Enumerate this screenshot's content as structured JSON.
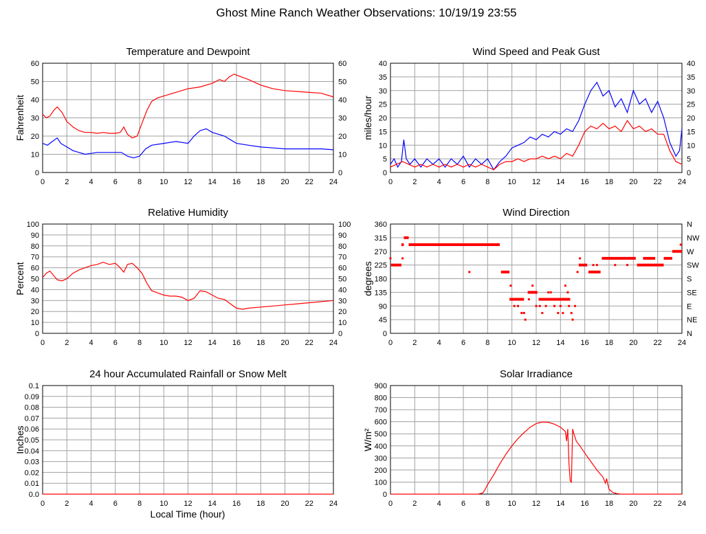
{
  "title": "Ghost Mine Ranch Weather Observations: 10/19/19 23:55",
  "colors": {
    "red": "#ff0000",
    "blue": "#0000ff",
    "grid": "#a0a0a0"
  },
  "x_axis_label": "Local Time (hour)",
  "chart_data": [
    {
      "id": "temp",
      "type": "line",
      "title": "Temperature and Dewpoint",
      "ylabel": "Fahrenheit",
      "xlim": [
        0,
        24
      ],
      "ylim": [
        0,
        60
      ],
      "xticks": [
        0,
        2,
        4,
        6,
        8,
        10,
        12,
        14,
        16,
        18,
        20,
        22,
        24
      ],
      "yticks": [
        0,
        10,
        20,
        30,
        40,
        50,
        60
      ],
      "right_ticks": [
        "0",
        "10",
        "20",
        "30",
        "40",
        "50",
        "60"
      ],
      "grid": true,
      "series": [
        {
          "color": "#ff0000",
          "x": [
            0,
            0.3,
            0.6,
            0.9,
            1.2,
            1.6,
            2,
            2.5,
            3,
            3.5,
            4,
            4.5,
            5,
            5.5,
            6,
            6.4,
            6.7,
            7,
            7.4,
            7.8,
            8.2,
            8.6,
            9,
            9.5,
            10,
            11,
            12,
            13,
            14,
            14.6,
            15,
            15.4,
            15.8,
            16.2,
            17,
            18,
            19,
            20,
            21,
            22,
            23,
            24
          ],
          "y": [
            32,
            30,
            31,
            34,
            36,
            33,
            28,
            25,
            23,
            22,
            22,
            21.5,
            22,
            21.5,
            21.5,
            22,
            25,
            21,
            19,
            20,
            27,
            34,
            39,
            41,
            42,
            44,
            46,
            47,
            49,
            51,
            50,
            52.5,
            54,
            53,
            51,
            48,
            46,
            45,
            44.5,
            44,
            43.5,
            41.5
          ]
        },
        {
          "color": "#0000ff",
          "x": [
            0,
            0.4,
            0.8,
            1.2,
            1.5,
            2,
            2.5,
            3,
            3.5,
            4,
            4.5,
            5,
            5.5,
            6,
            6.5,
            7,
            7.5,
            8,
            8.5,
            9,
            10,
            11,
            12,
            12.5,
            13,
            13.5,
            14,
            14.5,
            15,
            15.5,
            16,
            17,
            18,
            19,
            20,
            21,
            22,
            23,
            24
          ],
          "y": [
            16,
            15,
            17,
            19,
            16,
            14,
            12,
            11,
            10,
            10.5,
            11,
            11,
            11,
            11,
            11,
            9,
            8,
            9,
            13,
            15,
            16,
            17,
            16,
            20,
            23,
            24,
            22,
            21,
            20,
            18,
            16,
            15,
            14,
            13.5,
            13,
            13,
            13,
            13,
            12.5
          ]
        }
      ]
    },
    {
      "id": "wind",
      "type": "line",
      "title": "Wind Speed and Peak Gust",
      "ylabel": "miles/hour",
      "xlim": [
        0,
        24
      ],
      "ylim": [
        0,
        40
      ],
      "xticks": [
        0,
        2,
        4,
        6,
        8,
        10,
        12,
        14,
        16,
        18,
        20,
        22,
        24
      ],
      "yticks": [
        0,
        5,
        10,
        15,
        20,
        25,
        30,
        35,
        40
      ],
      "right_ticks": [
        "0",
        "5",
        "10",
        "15",
        "20",
        "25",
        "30",
        "35",
        "40"
      ],
      "grid": true,
      "series": [
        {
          "color": "#0000ff",
          "x": [
            0,
            0.3,
            0.6,
            0.9,
            1.1,
            1.3,
            1.6,
            2,
            2.5,
            3,
            3.5,
            4,
            4.5,
            5,
            5.5,
            6,
            6.5,
            7,
            7.5,
            8,
            8.5,
            9,
            9.5,
            10,
            10.5,
            11,
            11.5,
            12,
            12.5,
            13,
            13.5,
            14,
            14.5,
            15,
            15.5,
            16,
            16.5,
            17,
            17.5,
            18,
            18.5,
            19,
            19.5,
            20,
            20.5,
            21,
            21.5,
            22,
            22.5,
            23,
            23.5,
            23.8,
            24
          ],
          "y": [
            3,
            5,
            2,
            4,
            12,
            5,
            3,
            5,
            2,
            5,
            3,
            5,
            2,
            5,
            3,
            6,
            2,
            5,
            3,
            5,
            1,
            4,
            6,
            9,
            10,
            11,
            13,
            12,
            14,
            13,
            15,
            14,
            16,
            15,
            19,
            25,
            30,
            33,
            28,
            30,
            24,
            27,
            22,
            30,
            25,
            27,
            22,
            26,
            20,
            11,
            6,
            8,
            16
          ]
        },
        {
          "color": "#ff0000",
          "x": [
            0,
            0.5,
            1,
            1.5,
            2,
            2.5,
            3,
            3.5,
            4,
            4.5,
            5,
            5.5,
            6,
            6.5,
            7,
            7.5,
            8,
            8.5,
            9,
            9.5,
            10,
            10.5,
            11,
            11.5,
            12,
            12.5,
            13,
            13.5,
            14,
            14.5,
            15,
            15.5,
            16,
            16.5,
            17,
            17.5,
            18,
            18.5,
            19,
            19.5,
            20,
            20.5,
            21,
            21.5,
            22,
            22.5,
            23,
            23.5,
            24
          ],
          "y": [
            2,
            3,
            4,
            3,
            2,
            3,
            2,
            3,
            2,
            3,
            2,
            3,
            2,
            3,
            2,
            3,
            2,
            1,
            3,
            4,
            4,
            5,
            4,
            5,
            5,
            6,
            5,
            6,
            5,
            7,
            6,
            10,
            15,
            17,
            16,
            18,
            16,
            17,
            15,
            19,
            16,
            17,
            15,
            16,
            14,
            14,
            8,
            4,
            3
          ]
        }
      ]
    },
    {
      "id": "rh",
      "type": "line",
      "title": "Relative Humidity",
      "ylabel": "Percent",
      "xlim": [
        0,
        24
      ],
      "ylim": [
        0,
        100
      ],
      "xticks": [
        0,
        2,
        4,
        6,
        8,
        10,
        12,
        14,
        16,
        18,
        20,
        22,
        24
      ],
      "yticks": [
        0,
        10,
        20,
        30,
        40,
        50,
        60,
        70,
        80,
        90,
        100
      ],
      "right_ticks": [
        "0",
        "10",
        "20",
        "30",
        "40",
        "50",
        "60",
        "70",
        "80",
        "90",
        "100"
      ],
      "grid": true,
      "series": [
        {
          "color": "#ff0000",
          "x": [
            0,
            0.3,
            0.6,
            0.9,
            1.2,
            1.6,
            2,
            2.5,
            3,
            3.5,
            4,
            4.5,
            5,
            5.5,
            6,
            6.4,
            6.7,
            7,
            7.4,
            7.8,
            8.2,
            8.6,
            9,
            9.5,
            10,
            10.5,
            11,
            11.5,
            12,
            12.5,
            13,
            13.5,
            14,
            14.5,
            15,
            15.5,
            16,
            16.5,
            17,
            18,
            19,
            20,
            21,
            22,
            23,
            24
          ],
          "y": [
            51,
            55,
            57,
            53,
            49,
            48,
            50,
            55,
            58,
            60,
            62,
            63,
            65,
            63,
            64,
            60,
            56,
            63,
            64,
            60,
            55,
            46,
            39,
            37,
            35,
            34,
            34,
            33,
            30,
            32,
            39,
            38,
            35,
            32,
            31,
            27,
            23,
            22,
            23,
            24,
            25,
            26,
            27,
            28,
            29,
            30
          ]
        }
      ]
    },
    {
      "id": "wdir",
      "type": "scatter",
      "title": "Wind Direction",
      "ylabel": "degrees",
      "xlim": [
        0,
        24
      ],
      "ylim": [
        0,
        360
      ],
      "xticks": [
        0,
        2,
        4,
        6,
        8,
        10,
        12,
        14,
        16,
        18,
        20,
        22,
        24
      ],
      "yticks": [
        0,
        45,
        90,
        135,
        180,
        225,
        270,
        315,
        360
      ],
      "right_ticks": [
        "N",
        "NE",
        "E",
        "SE",
        "S",
        "SW",
        "W",
        "NW",
        "N"
      ],
      "grid": true,
      "series": [
        {
          "color": "#ff0000",
          "segments": [
            {
              "x0": 0.05,
              "x1": 0.9,
              "y": 225
            },
            {
              "x0": 0.9,
              "x1": 1.1,
              "y": 292
            },
            {
              "x0": 1.1,
              "x1": 1.5,
              "y": 315
            },
            {
              "x0": 1.5,
              "x1": 9.0,
              "y": 292
            },
            {
              "x0": 9.1,
              "x1": 9.8,
              "y": 202
            },
            {
              "x0": 9.8,
              "x1": 11,
              "y": 112
            },
            {
              "x0": 11.3,
              "x1": 12.1,
              "y": 135
            },
            {
              "x0": 12.2,
              "x1": 14.8,
              "y": 112
            },
            {
              "x0": 15.5,
              "x1": 16.2,
              "y": 225
            },
            {
              "x0": 16.3,
              "x1": 17.3,
              "y": 202
            },
            {
              "x0": 17.4,
              "x1": 20.2,
              "y": 247
            },
            {
              "x0": 20.3,
              "x1": 22.5,
              "y": 225
            },
            {
              "x0": 20.8,
              "x1": 21.8,
              "y": 247
            },
            {
              "x0": 22.5,
              "x1": 23.2,
              "y": 247
            },
            {
              "x0": 23.2,
              "x1": 24,
              "y": 270
            }
          ],
          "points": [
            {
              "x": 0,
              "y": 247
            },
            {
              "x": 1.0,
              "y": 247
            },
            {
              "x": 6.5,
              "y": 202
            },
            {
              "x": 9.9,
              "y": 157
            },
            {
              "x": 10.2,
              "y": 90
            },
            {
              "x": 10.5,
              "y": 90
            },
            {
              "x": 10.8,
              "y": 67
            },
            {
              "x": 11,
              "y": 67
            },
            {
              "x": 11.1,
              "y": 45
            },
            {
              "x": 11.4,
              "y": 112
            },
            {
              "x": 11.7,
              "y": 157
            },
            {
              "x": 12,
              "y": 90
            },
            {
              "x": 12.3,
              "y": 90
            },
            {
              "x": 12.5,
              "y": 67
            },
            {
              "x": 12.8,
              "y": 90
            },
            {
              "x": 13,
              "y": 135
            },
            {
              "x": 13.2,
              "y": 135
            },
            {
              "x": 13.5,
              "y": 90
            },
            {
              "x": 13.8,
              "y": 67
            },
            {
              "x": 14,
              "y": 90
            },
            {
              "x": 14.2,
              "y": 67
            },
            {
              "x": 14.4,
              "y": 157
            },
            {
              "x": 14.6,
              "y": 135
            },
            {
              "x": 14.7,
              "y": 90
            },
            {
              "x": 14.9,
              "y": 67
            },
            {
              "x": 15,
              "y": 45
            },
            {
              "x": 15.2,
              "y": 90
            },
            {
              "x": 15.4,
              "y": 202
            },
            {
              "x": 15.6,
              "y": 247
            },
            {
              "x": 16.7,
              "y": 225
            },
            {
              "x": 17.0,
              "y": 225
            },
            {
              "x": 18.5,
              "y": 225
            },
            {
              "x": 19.5,
              "y": 225
            },
            {
              "x": 23.9,
              "y": 292
            }
          ]
        }
      ]
    },
    {
      "id": "rain",
      "type": "line",
      "title": "24 hour Accumulated Rainfall or Snow Melt",
      "ylabel": "Inches",
      "xlim": [
        0,
        24
      ],
      "ylim": [
        0,
        0.1
      ],
      "xticks": [
        0,
        2,
        4,
        6,
        8,
        10,
        12,
        14,
        16,
        18,
        20,
        22,
        24
      ],
      "yticks": [
        0,
        0.01,
        0.02,
        0.03,
        0.04,
        0.05,
        0.06,
        0.07,
        0.08,
        0.09,
        0.1
      ],
      "ytick_labels": [
        "0.0",
        "0.01",
        "0.02",
        "0.03",
        "0.04",
        "0.05",
        "0.06",
        "0.07",
        "0.08",
        "0.09",
        "0.1"
      ],
      "grid": true,
      "series": [
        {
          "color": "#ff0000",
          "x": [
            0,
            24
          ],
          "y": [
            0,
            0
          ]
        }
      ]
    },
    {
      "id": "solar",
      "type": "line",
      "title": "Solar Irradiance",
      "ylabel": "W/m²",
      "xlim": [
        0,
        24
      ],
      "ylim": [
        0,
        900
      ],
      "xticks": [
        0,
        2,
        4,
        6,
        8,
        10,
        12,
        14,
        16,
        18,
        20,
        22,
        24
      ],
      "yticks": [
        0,
        100,
        200,
        300,
        400,
        500,
        600,
        700,
        800,
        900
      ],
      "grid": true,
      "series": [
        {
          "color": "#ff0000",
          "x": [
            0,
            7.2,
            7.6,
            7.8,
            8,
            8.5,
            9,
            9.5,
            10,
            10.5,
            11,
            11.5,
            12,
            12.5,
            13,
            13.5,
            14,
            14.4,
            14.5,
            14.6,
            14.7,
            14.8,
            14.9,
            15,
            15.1,
            15.3,
            15.6,
            16,
            16.5,
            17,
            17.5,
            17.7,
            17.8,
            17.9,
            18,
            18.3,
            18.6,
            19,
            24
          ],
          "y": [
            0,
            0,
            10,
            40,
            80,
            160,
            250,
            330,
            400,
            460,
            510,
            555,
            585,
            598,
            595,
            580,
            555,
            520,
            440,
            540,
            250,
            110,
            100,
            540,
            500,
            440,
            400,
            340,
            270,
            200,
            140,
            90,
            130,
            80,
            40,
            15,
            5,
            0,
            0
          ]
        }
      ]
    }
  ]
}
